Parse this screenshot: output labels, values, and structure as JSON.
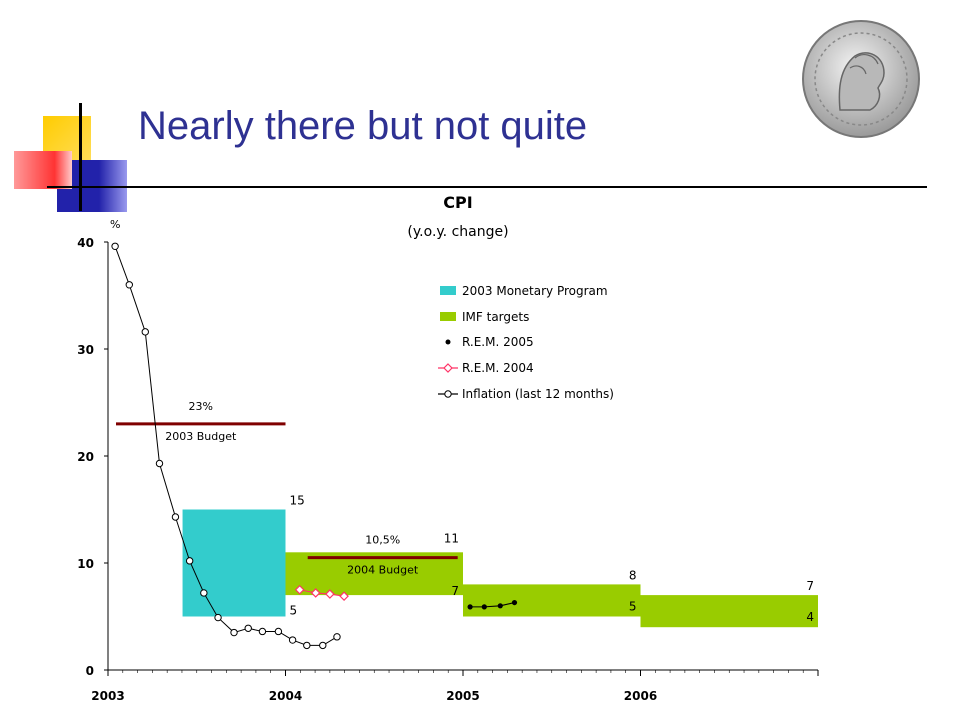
{
  "slide": {
    "title": "Nearly there but not quite"
  },
  "colors": {
    "title": "#2e3192",
    "monetary_program": "#33cccc",
    "imf_targets": "#99cc00",
    "budget_line": "#7f0000",
    "rem_2004": "#ff3366",
    "rem_2005": "#000000",
    "inflation": "#000000"
  },
  "chart_data": {
    "type": "line",
    "title": "CPI",
    "subtitle": "(y.o.y. change)",
    "y_unit_label": "%",
    "ylim": [
      0,
      40
    ],
    "y_ticks": [
      0,
      10,
      20,
      30,
      40
    ],
    "xlim": [
      2003,
      2007
    ],
    "x_ticks": [
      {
        "value": 2003,
        "label": "2003"
      },
      {
        "value": 2004,
        "label": "2004"
      },
      {
        "value": 2005,
        "label": "2005"
      },
      {
        "value": 2006,
        "label": "2006"
      }
    ],
    "legend": [
      {
        "label": "2003 Monetary Program",
        "symbol": "box-monetary"
      },
      {
        "label": "IMF targets",
        "symbol": "box-imf"
      },
      {
        "label": "R.E.M. 2005",
        "symbol": "dot-rem2005"
      },
      {
        "label": "R.E.M. 2004",
        "symbol": "diamond-rem2004"
      },
      {
        "label": "Inflation (last 12 months)",
        "symbol": "circle-inflation"
      }
    ],
    "bands": [
      {
        "series": "2003 Monetary Program",
        "x_start": 2003.42,
        "x_end": 2004.0,
        "low": 5,
        "high": 15,
        "low_label": "5",
        "high_label": "15"
      },
      {
        "series": "IMF targets",
        "x_start": 2004.0,
        "x_end": 2005.0,
        "low": 7,
        "high": 11,
        "low_label": "7",
        "high_label": "11"
      },
      {
        "series": "IMF targets",
        "x_start": 2005.0,
        "x_end": 2006.0,
        "low": 5,
        "high": 8,
        "low_label": "5",
        "high_label": "8"
      },
      {
        "series": "IMF targets",
        "x_start": 2006.0,
        "x_end": 2007.0,
        "low": 4,
        "high": 7,
        "low_label": "4",
        "high_label": "7"
      }
    ],
    "budget_lines": [
      {
        "x_start": 2003.0,
        "x_end": 2004.0,
        "value": 23,
        "value_label": "23%",
        "label": "2003 Budget"
      },
      {
        "x_start": 2004.08,
        "x_end": 2004.97,
        "value": 10.5,
        "value_label": "10,5%",
        "label": "2004 Budget"
      }
    ],
    "series": [
      {
        "name": "Inflation (last 12 months)",
        "marker": "circle",
        "x": [
          2003.04,
          2003.12,
          2003.21,
          2003.29,
          2003.38,
          2003.46,
          2003.54,
          2003.62,
          2003.71,
          2003.79,
          2003.87,
          2003.96,
          2004.04,
          2004.12,
          2004.21,
          2004.29
        ],
        "y": [
          39.6,
          36.0,
          31.6,
          19.3,
          14.3,
          10.2,
          7.2,
          4.9,
          3.5,
          3.9,
          3.6,
          3.6,
          2.8,
          2.3,
          2.3,
          3.1
        ]
      },
      {
        "name": "R.E.M. 2004",
        "marker": "diamond",
        "x": [
          2004.08,
          2004.17,
          2004.25,
          2004.33
        ],
        "y": [
          7.5,
          7.2,
          7.1,
          6.9
        ]
      },
      {
        "name": "R.E.M. 2005",
        "marker": "dot",
        "x": [
          2005.04,
          2005.12,
          2005.21,
          2005.29
        ],
        "y": [
          5.9,
          5.9,
          6.0,
          6.3
        ]
      }
    ]
  }
}
